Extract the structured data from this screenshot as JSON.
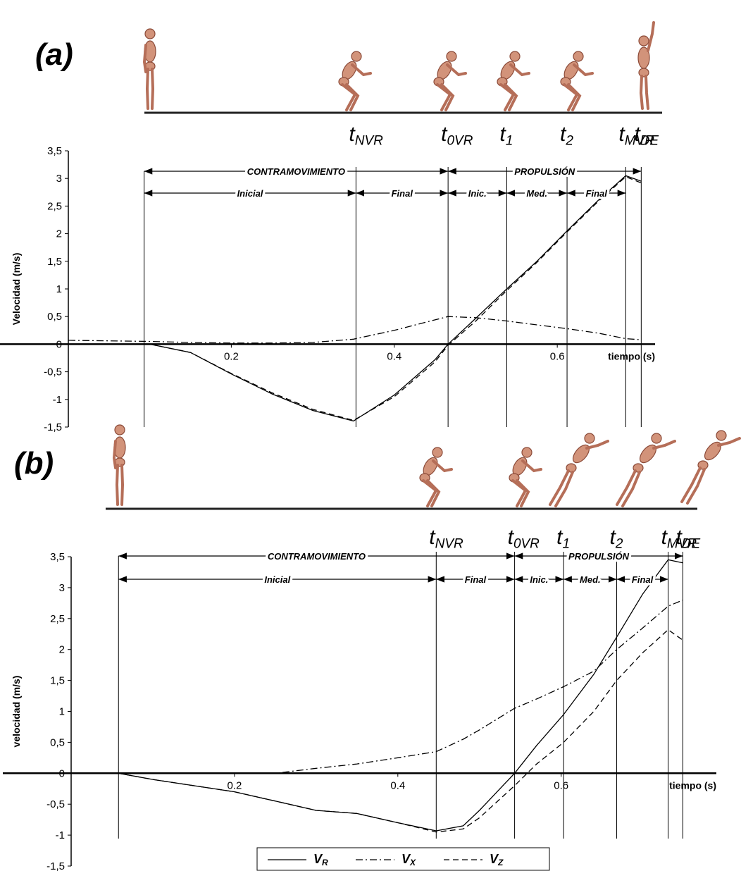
{
  "chart_data": [
    {
      "type": "line",
      "panel": "(a)",
      "ylabel": "Velocidad (m/s)",
      "xlabel": "tiempo (s)",
      "xlim": [
        0,
        0.72
      ],
      "xticks": [
        0.2,
        0.4,
        0.6
      ],
      "ylim": [
        -1.5,
        3.5
      ],
      "yticks": [
        {
          "value": 3.5,
          "label": "3,5"
        },
        3,
        {
          "value": 2.5,
          "label": "2,5"
        },
        2,
        {
          "value": 1.5,
          "label": "1,5"
        },
        1,
        {
          "value": 0.5,
          "label": "0,5"
        },
        0,
        {
          "value": -0.5,
          "label": "-0,5"
        },
        -1,
        {
          "value": -1.5,
          "label": "-1,5"
        }
      ],
      "x": [
        0,
        0.05,
        0.1,
        0.15,
        0.2,
        0.25,
        0.3,
        0.35,
        0.4,
        0.45,
        0.466,
        0.5,
        0.538,
        0.575,
        0.612,
        0.65,
        0.684,
        0.703
      ],
      "series": [
        {
          "color": "#000000",
          "dash": "solid",
          "values": [
            0,
            0,
            0,
            -0.15,
            -0.54,
            -0.9,
            -1.2,
            -1.39,
            -0.92,
            -0.28,
            0,
            0.47,
            1.0,
            1.5,
            2.05,
            2.6,
            3.05,
            2.95
          ]
        },
        {
          "color": "#000000",
          "dash": "dashdot",
          "values": [
            0.07,
            0.06,
            0.05,
            0.03,
            0.02,
            0.02,
            0.03,
            0.09,
            0.25,
            0.44,
            0.5,
            0.48,
            0.42,
            0.35,
            0.28,
            0.2,
            0.1,
            0.08
          ]
        },
        {
          "color": "#000000",
          "dash": "dashed",
          "values": [
            0,
            0,
            0,
            -0.15,
            -0.53,
            -0.88,
            -1.18,
            -1.38,
            -0.95,
            -0.32,
            -0.02,
            0.42,
            0.97,
            1.48,
            2.03,
            2.58,
            3.03,
            2.92
          ]
        }
      ],
      "events": [
        {
          "label": "tNVR",
          "x": 0.353
        },
        {
          "label": "t0VR",
          "x": 0.466
        },
        {
          "label": "t1",
          "x": 0.538
        },
        {
          "label": "t2",
          "x": 0.612
        },
        {
          "label": "tMVR",
          "x": 0.684
        },
        {
          "label": "tDE",
          "x": 0.703
        }
      ],
      "phases": [
        [
          {
            "label": "CONTRAMOVIMIENTO",
            "from": 0.093,
            "to": 0.466
          },
          {
            "label": "PROPULSIÓN",
            "from": 0.466,
            "to": 0.703
          }
        ],
        [
          {
            "label": "Inicial",
            "from": 0.093,
            "to": 0.353
          },
          {
            "label": "Final",
            "from": 0.353,
            "to": 0.466
          },
          {
            "label": "Inic.",
            "from": 0.466,
            "to": 0.538
          },
          {
            "label": "Med.",
            "from": 0.538,
            "to": 0.612
          },
          {
            "label": "Final",
            "from": 0.612,
            "to": 0.684
          }
        ]
      ]
    },
    {
      "type": "line",
      "panel": "(b)",
      "ylabel": "velocidad (m/s)",
      "xlabel": "tiempo (s)",
      "xlim": [
        0,
        0.79
      ],
      "xticks": [
        0.2,
        0.4,
        0.6
      ],
      "ylim": [
        -1.5,
        3.5
      ],
      "yticks": [
        {
          "value": 3.5,
          "label": "3,5"
        },
        3,
        {
          "value": 2.5,
          "label": "2,5"
        },
        2,
        {
          "value": 1.5,
          "label": "1,5"
        },
        1,
        {
          "value": 0.5,
          "label": "0,5"
        },
        0,
        {
          "value": -0.5,
          "label": "-0,5"
        },
        -1,
        {
          "value": -1.5,
          "label": "-1,5"
        }
      ],
      "x": [
        0,
        0.058,
        0.1,
        0.15,
        0.2,
        0.25,
        0.3,
        0.35,
        0.4,
        0.447,
        0.48,
        0.5,
        0.543,
        0.57,
        0.603,
        0.64,
        0.668,
        0.7,
        0.731,
        0.749
      ],
      "series": [
        {
          "name": "VR",
          "color": "#000000",
          "dash": "solid",
          "values": [
            0,
            0,
            -0.1,
            -0.2,
            -0.3,
            -0.45,
            -0.6,
            -0.65,
            -0.8,
            -0.93,
            -0.85,
            -0.6,
            0,
            0.45,
            0.95,
            1.6,
            2.2,
            2.9,
            3.45,
            3.4
          ]
        },
        {
          "name": "VX",
          "color": "#000000",
          "dash": "dashdot",
          "values": [
            0,
            0,
            0,
            0,
            0,
            0,
            0.08,
            0.15,
            0.25,
            0.35,
            0.55,
            0.7,
            1.05,
            1.2,
            1.4,
            1.65,
            2.0,
            2.35,
            2.7,
            2.8
          ]
        },
        {
          "name": "VZ",
          "color": "#000000",
          "dash": "dashed",
          "values": [
            0,
            0,
            -0.1,
            -0.2,
            -0.3,
            -0.45,
            -0.6,
            -0.65,
            -0.8,
            -0.95,
            -0.9,
            -0.72,
            -0.2,
            0.15,
            0.5,
            1.0,
            1.5,
            1.95,
            2.32,
            2.15
          ]
        }
      ],
      "legend": "bottom",
      "events": [
        {
          "label": "tNVR",
          "x": 0.447
        },
        {
          "label": "t0VR",
          "x": 0.543
        },
        {
          "label": "t1",
          "x": 0.603
        },
        {
          "label": "t2",
          "x": 0.668
        },
        {
          "label": "tMVR",
          "x": 0.731
        },
        {
          "label": "tDE",
          "x": 0.749
        }
      ],
      "phases": [
        [
          {
            "label": "CONTRAMOVIMIENTO",
            "from": 0.058,
            "to": 0.543
          },
          {
            "label": "PROPULSIÓN",
            "from": 0.543,
            "to": 0.749
          }
        ],
        [
          {
            "label": "Inicial",
            "from": 0.058,
            "to": 0.447
          },
          {
            "label": "Final",
            "from": 0.447,
            "to": 0.543
          },
          {
            "label": "Inic.",
            "from": 0.543,
            "to": 0.603
          },
          {
            "label": "Med.",
            "from": 0.603,
            "to": 0.668
          },
          {
            "label": "Final",
            "from": 0.668,
            "to": 0.731
          }
        ]
      ]
    }
  ]
}
